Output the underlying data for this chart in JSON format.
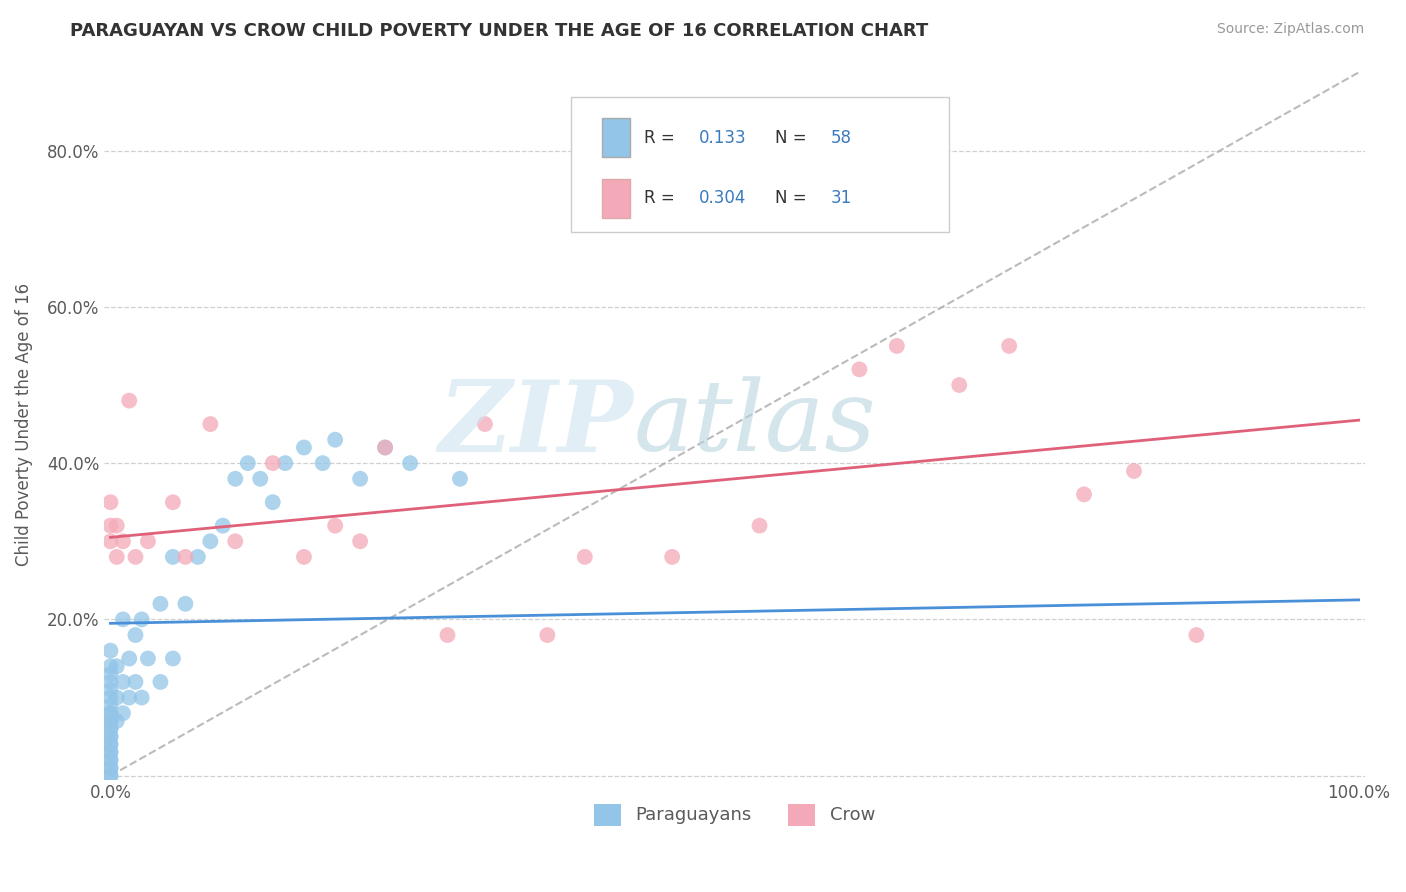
{
  "title": "PARAGUAYAN VS CROW CHILD POVERTY UNDER THE AGE OF 16 CORRELATION CHART",
  "source": "Source: ZipAtlas.com",
  "ylabel": "Child Poverty Under the Age of 16",
  "xlim": [
    0.0,
    1.0
  ],
  "ylim": [
    0.0,
    0.9
  ],
  "xtick_positions": [
    0.0,
    0.2,
    0.4,
    0.6,
    0.8,
    1.0
  ],
  "xtick_labels": [
    "0.0%",
    "",
    "",
    "",
    "",
    "100.0%"
  ],
  "ytick_positions": [
    0.0,
    0.2,
    0.4,
    0.6,
    0.8
  ],
  "ytick_labels": [
    "",
    "20.0%",
    "40.0%",
    "60.0%",
    "80.0%"
  ],
  "legend1_r": "0.133",
  "legend1_n": "58",
  "legend2_r": "0.304",
  "legend2_n": "31",
  "legend_labels": [
    "Paraguayans",
    "Crow"
  ],
  "blue_color": "#92c5e8",
  "pink_color": "#f4a9b8",
  "blue_line_color": "#4a90d9",
  "pink_line_color": "#e0607a",
  "ref_line_color": "#aaaaaa",
  "paraguayan_x": [
    0.0,
    0.0,
    0.0,
    0.0,
    0.0,
    0.0,
    0.0,
    0.0,
    0.0,
    0.0,
    0.0,
    0.0,
    0.0,
    0.0,
    0.0,
    0.0,
    0.0,
    0.0,
    0.0,
    0.0,
    0.0,
    0.0,
    0.0,
    0.0,
    0.0,
    0.005,
    0.005,
    0.005,
    0.01,
    0.01,
    0.01,
    0.015,
    0.015,
    0.02,
    0.02,
    0.025,
    0.025,
    0.03,
    0.04,
    0.04,
    0.05,
    0.05,
    0.06,
    0.07,
    0.08,
    0.09,
    0.1,
    0.11,
    0.12,
    0.13,
    0.14,
    0.155,
    0.17,
    0.18,
    0.2,
    0.22,
    0.24,
    0.28
  ],
  "paraguayan_y": [
    0.0,
    0.0,
    0.01,
    0.01,
    0.02,
    0.02,
    0.03,
    0.03,
    0.04,
    0.04,
    0.05,
    0.05,
    0.06,
    0.06,
    0.07,
    0.07,
    0.08,
    0.08,
    0.09,
    0.1,
    0.11,
    0.12,
    0.13,
    0.14,
    0.16,
    0.07,
    0.1,
    0.14,
    0.08,
    0.12,
    0.2,
    0.1,
    0.15,
    0.12,
    0.18,
    0.1,
    0.2,
    0.15,
    0.12,
    0.22,
    0.15,
    0.28,
    0.22,
    0.28,
    0.3,
    0.32,
    0.38,
    0.4,
    0.38,
    0.35,
    0.4,
    0.42,
    0.4,
    0.43,
    0.38,
    0.42,
    0.4,
    0.38
  ],
  "crow_x": [
    0.0,
    0.0,
    0.0,
    0.005,
    0.005,
    0.01,
    0.015,
    0.02,
    0.03,
    0.05,
    0.06,
    0.08,
    0.1,
    0.13,
    0.155,
    0.18,
    0.2,
    0.22,
    0.27,
    0.3,
    0.35,
    0.38,
    0.45,
    0.52,
    0.6,
    0.63,
    0.68,
    0.72,
    0.78,
    0.82,
    0.87
  ],
  "crow_y": [
    0.3,
    0.32,
    0.35,
    0.28,
    0.32,
    0.3,
    0.48,
    0.28,
    0.3,
    0.35,
    0.28,
    0.45,
    0.3,
    0.4,
    0.28,
    0.32,
    0.3,
    0.42,
    0.18,
    0.45,
    0.18,
    0.28,
    0.28,
    0.32,
    0.52,
    0.55,
    0.5,
    0.55,
    0.36,
    0.39,
    0.18
  ],
  "blue_trend_x": [
    0.0,
    1.0
  ],
  "blue_trend_y": [
    0.195,
    0.225
  ],
  "pink_trend_x": [
    0.0,
    1.0
  ],
  "pink_trend_y": [
    0.305,
    0.455
  ]
}
